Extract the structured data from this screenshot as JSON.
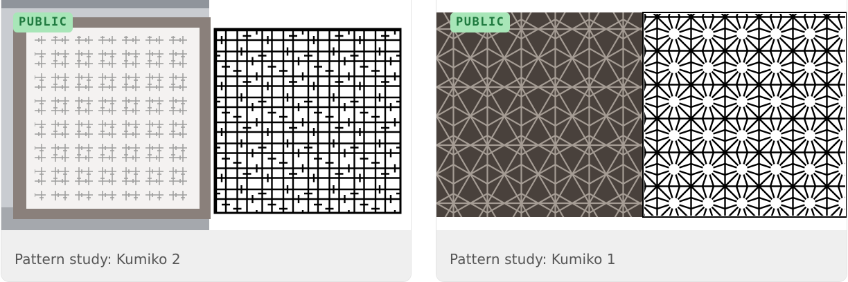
{
  "colors": {
    "badge_bg": "#a8e6b8",
    "badge_text": "#1f7a3f",
    "card_footer_bg": "#efefef",
    "title_text": "#555555",
    "pattern_stroke": "#000000"
  },
  "cards": [
    {
      "badge": "PUBLIC",
      "title": "Pattern study: Kumiko 2",
      "thumbnail": {
        "left": "photo of a framed kumiko lattice panel with cross-bar pattern",
        "right": "black line drawing of a square cross-bar lattice pattern"
      }
    },
    {
      "badge": "PUBLIC",
      "title": "Pattern study: Kumiko 1",
      "thumbnail": {
        "left": "photo of a dark asanoha kumiko panel",
        "right": "black line drawing of an asanoha star lattice pattern"
      }
    }
  ]
}
